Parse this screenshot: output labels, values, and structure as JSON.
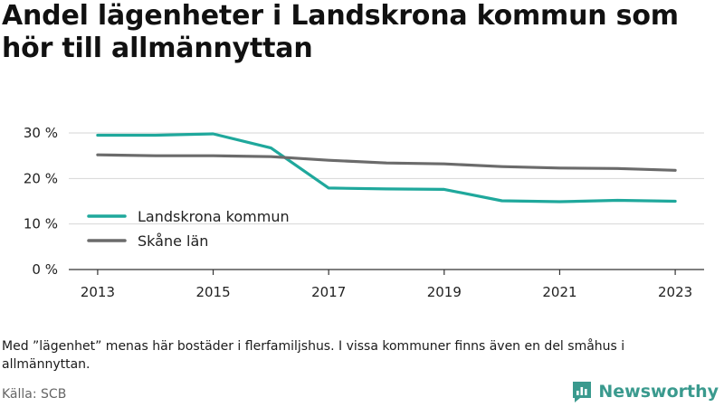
{
  "title": "Andel lägenheter i Landskrona kommun som hör till allmännyttan",
  "note": "Med ”lägenhet” menas här bostäder i flerfamiljshus. I vissa kommuner finns även en del småhus i allmännyttan.",
  "source": "Källa: SCB",
  "brand": {
    "name": "Newsworthy",
    "icon": "bar-chart-logo-icon",
    "color": "#3a9a8e"
  },
  "chart_data": {
    "type": "line",
    "title": "",
    "xlabel": "",
    "ylabel": "",
    "x": [
      2013,
      2014,
      2015,
      2016,
      2017,
      2018,
      2019,
      2020,
      2021,
      2022,
      2023
    ],
    "x_ticks": [
      "2013",
      "2015",
      "2017",
      "2019",
      "2021",
      "2023"
    ],
    "y_ticks": [
      "0 %",
      "10 %",
      "20 %",
      "30 %"
    ],
    "ylim": [
      0,
      30
    ],
    "grid": true,
    "legend_position": "left-middle",
    "series": [
      {
        "name": "Landskrona kommun",
        "color": "#1fa89c",
        "values": [
          29.5,
          29.5,
          29.8,
          26.7,
          17.9,
          17.7,
          17.6,
          15.1,
          14.9,
          15.2,
          15.0
        ]
      },
      {
        "name": "Skåne län",
        "color": "#6b6b6b",
        "values": [
          25.2,
          25.0,
          25.0,
          24.8,
          24.0,
          23.4,
          23.2,
          22.6,
          22.3,
          22.2,
          21.8
        ]
      }
    ]
  }
}
